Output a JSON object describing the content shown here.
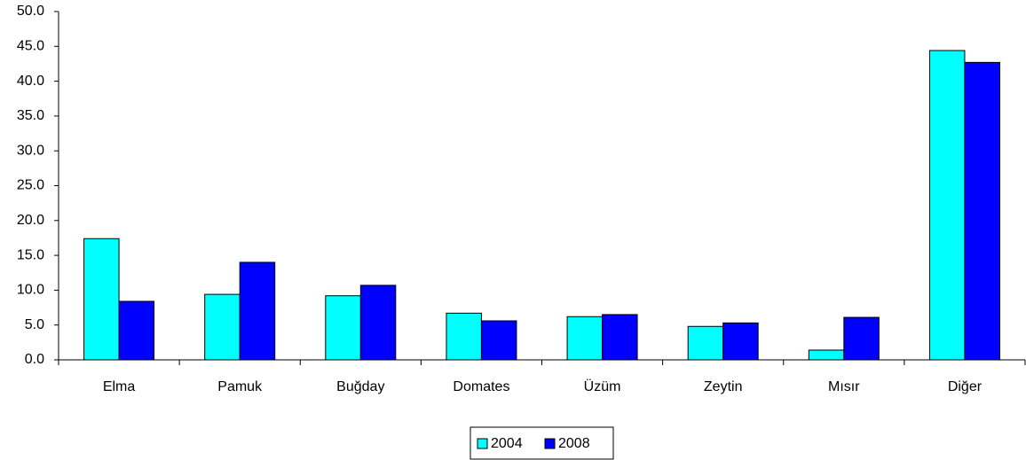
{
  "chart_data": {
    "type": "bar",
    "categories": [
      "Elma",
      "Pamuk",
      "Buğday",
      "Domates",
      "Üzüm",
      "Zeytin",
      "Mısır",
      "Diğer"
    ],
    "series": [
      {
        "name": "2004",
        "color": "#00ffff",
        "values": [
          17.4,
          9.4,
          9.2,
          6.7,
          6.2,
          4.8,
          1.4,
          44.4
        ]
      },
      {
        "name": "2008",
        "color": "#0000ff",
        "values": [
          8.4,
          14.0,
          10.7,
          5.6,
          6.5,
          5.3,
          6.1,
          42.7
        ]
      }
    ],
    "ylim": [
      0,
      50
    ],
    "yticks": [
      {
        "value": 0,
        "label": "0.0"
      },
      {
        "value": 5,
        "label": "5.0"
      },
      {
        "value": 10,
        "label": "10.0"
      },
      {
        "value": 15,
        "label": "15.0"
      },
      {
        "value": 20,
        "label": "20.0"
      },
      {
        "value": 25,
        "label": "25.0"
      },
      {
        "value": 30,
        "label": "30.0"
      },
      {
        "value": 35,
        "label": "35.0"
      },
      {
        "value": 40,
        "label": "40.0"
      },
      {
        "value": 45,
        "label": "45.0"
      },
      {
        "value": 50,
        "label": "50.0"
      }
    ],
    "legend": "bottom"
  }
}
